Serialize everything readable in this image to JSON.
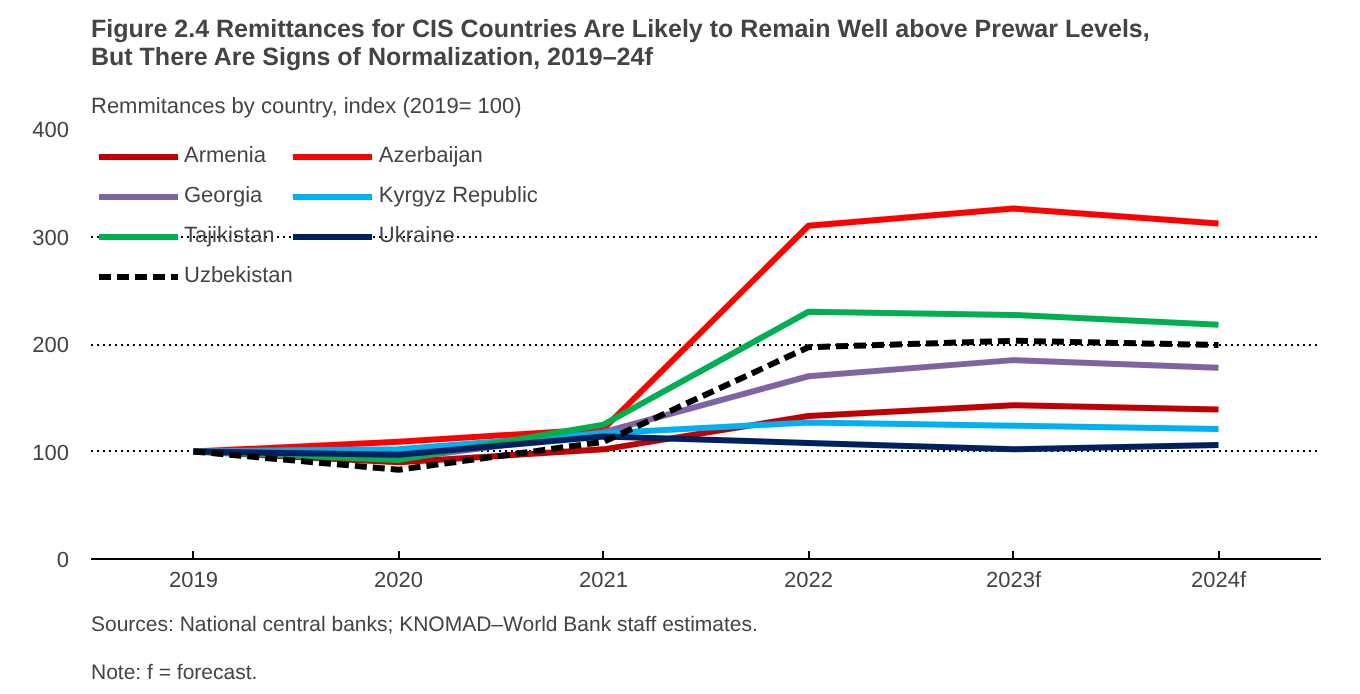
{
  "chart_data": {
    "type": "line",
    "title": "Figure 2.4 Remittances for CIS Countries Are Likely to Remain Well above Prewar Levels, But There Are Signs of Normalization, 2019–24f",
    "ylabel": "Remmitances by country, index (2019= 100)",
    "categories": [
      "2019",
      "2020",
      "2021",
      "2022",
      "2023f",
      "2024f"
    ],
    "ylim": [
      0,
      400
    ],
    "yticks": [
      0,
      100,
      200,
      300,
      400
    ],
    "grid": "y",
    "legend": "top left",
    "line_style": "solid",
    "series": [
      {
        "name": "Armenia",
        "color": "#c00000",
        "values": [
          100,
          90,
          102,
          133,
          143,
          139
        ]
      },
      {
        "name": "Azerbaijan",
        "color": "#ff0000",
        "values": [
          100,
          109,
          121,
          310,
          326,
          312
        ]
      },
      {
        "name": "Georgia",
        "color": "#8064a2",
        "values": [
          100,
          93,
          118,
          170,
          185,
          178
        ]
      },
      {
        "name": "Kyrgyz Republic",
        "color": "#00b0f0",
        "values": [
          100,
          102,
          117,
          127,
          124,
          121
        ]
      },
      {
        "name": "Tajikistan",
        "color": "#00b050",
        "values": [
          100,
          92,
          125,
          230,
          227,
          218
        ]
      },
      {
        "name": "Ukraine",
        "color": "#002060",
        "values": [
          100,
          97,
          114,
          108,
          102,
          106
        ]
      },
      {
        "name": "Uzbekistan",
        "color": "#000000",
        "values": [
          100,
          83,
          109,
          197,
          203,
          199
        ],
        "line_style": "dashed"
      }
    ],
    "annotations": [
      "Sources: National central banks; KNOMAD–World Bank staff estimates.",
      "Note: f = forecast."
    ]
  }
}
